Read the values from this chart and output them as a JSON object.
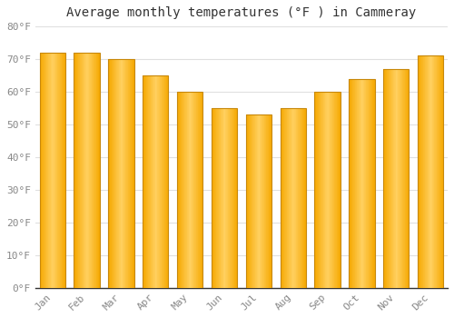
{
  "title": "Average monthly temperatures (°F ) in Cammeray",
  "months": [
    "Jan",
    "Feb",
    "Mar",
    "Apr",
    "May",
    "Jun",
    "Jul",
    "Aug",
    "Sep",
    "Oct",
    "Nov",
    "Dec"
  ],
  "values": [
    72,
    72,
    70,
    65,
    60,
    55,
    53,
    55,
    60,
    64,
    67,
    71
  ],
  "bar_color_center": "#FFD060",
  "bar_color_edge": "#F5A800",
  "bar_outline_color": "#B8860B",
  "ylim": [
    0,
    80
  ],
  "yticks": [
    0,
    10,
    20,
    30,
    40,
    50,
    60,
    70,
    80
  ],
  "ytick_labels": [
    "0°F",
    "10°F",
    "20°F",
    "30°F",
    "40°F",
    "50°F",
    "60°F",
    "70°F",
    "80°F"
  ],
  "background_color": "#ffffff",
  "grid_color": "#e0e0e0",
  "title_fontsize": 10,
  "tick_fontsize": 8,
  "font_family": "monospace"
}
